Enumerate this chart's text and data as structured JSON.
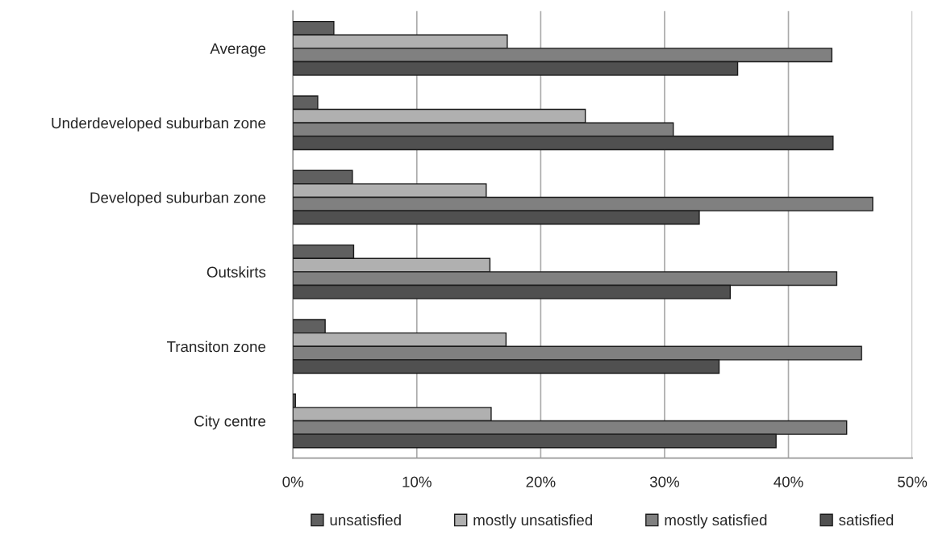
{
  "chart_data": {
    "type": "bar",
    "orientation": "horizontal",
    "categories": [
      "Average",
      "Underdeveloped suburban zone",
      "Developed suburban zone",
      "Outskirts",
      "Transiton zone",
      "City centre"
    ],
    "series": [
      {
        "name": "unsatisfied",
        "color": "#606060",
        "values": [
          3.3,
          2.0,
          4.8,
          4.9,
          2.6,
          0.2
        ]
      },
      {
        "name": "mostly unsatisfied",
        "color": "#b0b0b0",
        "values": [
          17.3,
          23.6,
          15.6,
          15.9,
          17.2,
          16.0
        ]
      },
      {
        "name": "mostly satisfied",
        "color": "#808080",
        "values": [
          43.5,
          30.7,
          46.8,
          43.9,
          45.9,
          44.7
        ]
      },
      {
        "name": "satisfied",
        "color": "#505050",
        "values": [
          35.9,
          43.6,
          32.8,
          35.3,
          34.4,
          39.0
        ]
      }
    ],
    "xlim": [
      0,
      50
    ],
    "xticks": [
      {
        "value": 0,
        "label": "0%"
      },
      {
        "value": 10,
        "label": "10%"
      },
      {
        "value": 20,
        "label": "20%"
      },
      {
        "value": 30,
        "label": "30%"
      },
      {
        "value": 40,
        "label": "40%"
      },
      {
        "value": 50,
        "label": "50%"
      }
    ],
    "grid": "x",
    "legend": "bottom"
  }
}
